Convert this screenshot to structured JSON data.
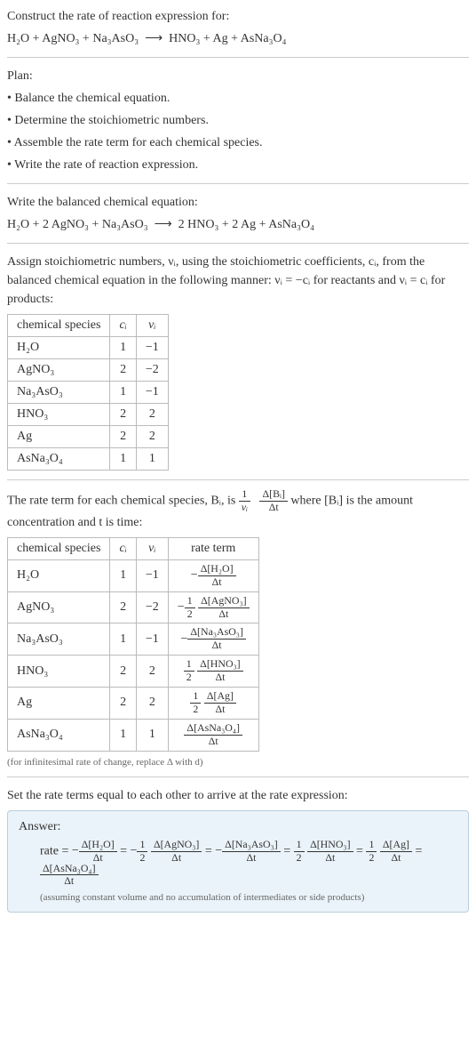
{
  "header": {
    "line1": "Construct the rate of reaction expression for:",
    "equation_lhs": "H₂O + AgNO₃ + Na₃AsO₃",
    "equation_rhs": "HNO₃ + Ag + AsNa₃O₄"
  },
  "plan": {
    "title": "Plan:",
    "items": [
      "• Balance the chemical equation.",
      "• Determine the stoichiometric numbers.",
      "• Assemble the rate term for each chemical species.",
      "• Write the rate of reaction expression."
    ]
  },
  "balanced": {
    "title": "Write the balanced chemical equation:",
    "lhs": "H₂O + 2 AgNO₃ + Na₃AsO₃",
    "rhs": "2 HNO₃ + 2 Ag + AsNa₃O₄"
  },
  "assign": {
    "para": "Assign stoichiometric numbers, νᵢ, using the stoichiometric coefficients, cᵢ, from the balanced chemical equation in the following manner: νᵢ = −cᵢ for reactants and νᵢ = cᵢ for products:"
  },
  "table1": {
    "headers": [
      "chemical species",
      "cᵢ",
      "νᵢ"
    ],
    "rows": [
      [
        "H₂O",
        "1",
        "−1"
      ],
      [
        "AgNO₃",
        "2",
        "−2"
      ],
      [
        "Na₃AsO₃",
        "1",
        "−1"
      ],
      [
        "HNO₃",
        "2",
        "2"
      ],
      [
        "Ag",
        "2",
        "2"
      ],
      [
        "AsNa₃O₄",
        "1",
        "1"
      ]
    ]
  },
  "rate_term": {
    "pre": "The rate term for each chemical species, Bᵢ, is ",
    "post": " where [Bᵢ] is the amount concentration and t is time:",
    "frac1_num": "1",
    "frac1_den": "νᵢ",
    "frac2_num": "Δ[Bᵢ]",
    "frac2_den": "Δt"
  },
  "table2": {
    "headers": [
      "chemical species",
      "cᵢ",
      "νᵢ",
      "rate term"
    ],
    "rows": [
      {
        "sp": "H₂O",
        "c": "1",
        "v": "−1",
        "sign": "−",
        "half": false,
        "num": "Δ[H₂O]",
        "den": "Δt"
      },
      {
        "sp": "AgNO₃",
        "c": "2",
        "v": "−2",
        "sign": "−",
        "half": true,
        "num": "Δ[AgNO₃]",
        "den": "Δt"
      },
      {
        "sp": "Na₃AsO₃",
        "c": "1",
        "v": "−1",
        "sign": "−",
        "half": false,
        "num": "Δ[Na₃AsO₃]",
        "den": "Δt"
      },
      {
        "sp": "HNO₃",
        "c": "2",
        "v": "2",
        "sign": "",
        "half": true,
        "num": "Δ[HNO₃]",
        "den": "Δt"
      },
      {
        "sp": "Ag",
        "c": "2",
        "v": "2",
        "sign": "",
        "half": true,
        "num": "Δ[Ag]",
        "den": "Δt"
      },
      {
        "sp": "AsNa₃O₄",
        "c": "1",
        "v": "1",
        "sign": "",
        "half": false,
        "num": "Δ[AsNa₃O₄]",
        "den": "Δt"
      }
    ]
  },
  "note1": "(for infinitesimal rate of change, replace Δ with d)",
  "set_equal": "Set the rate terms equal to each other to arrive at the rate expression:",
  "answer": {
    "title": "Answer:",
    "prefix": "rate = ",
    "terms": [
      {
        "sign": "−",
        "half": false,
        "num": "Δ[H₂O]",
        "den": "Δt"
      },
      {
        "sign": "−",
        "half": true,
        "num": "Δ[AgNO₃]",
        "den": "Δt"
      },
      {
        "sign": "−",
        "half": false,
        "num": "Δ[Na₃AsO₃]",
        "den": "Δt"
      },
      {
        "sign": "",
        "half": true,
        "num": "Δ[HNO₃]",
        "den": "Δt"
      },
      {
        "sign": "",
        "half": true,
        "num": "Δ[Ag]",
        "den": "Δt"
      },
      {
        "sign": "",
        "half": false,
        "num": "Δ[AsNa₃O₄]",
        "den": "Δt"
      }
    ],
    "note": "(assuming constant volume and no accumulation of intermediates or side products)"
  },
  "half_num": "1",
  "half_den": "2",
  "eq": " = "
}
